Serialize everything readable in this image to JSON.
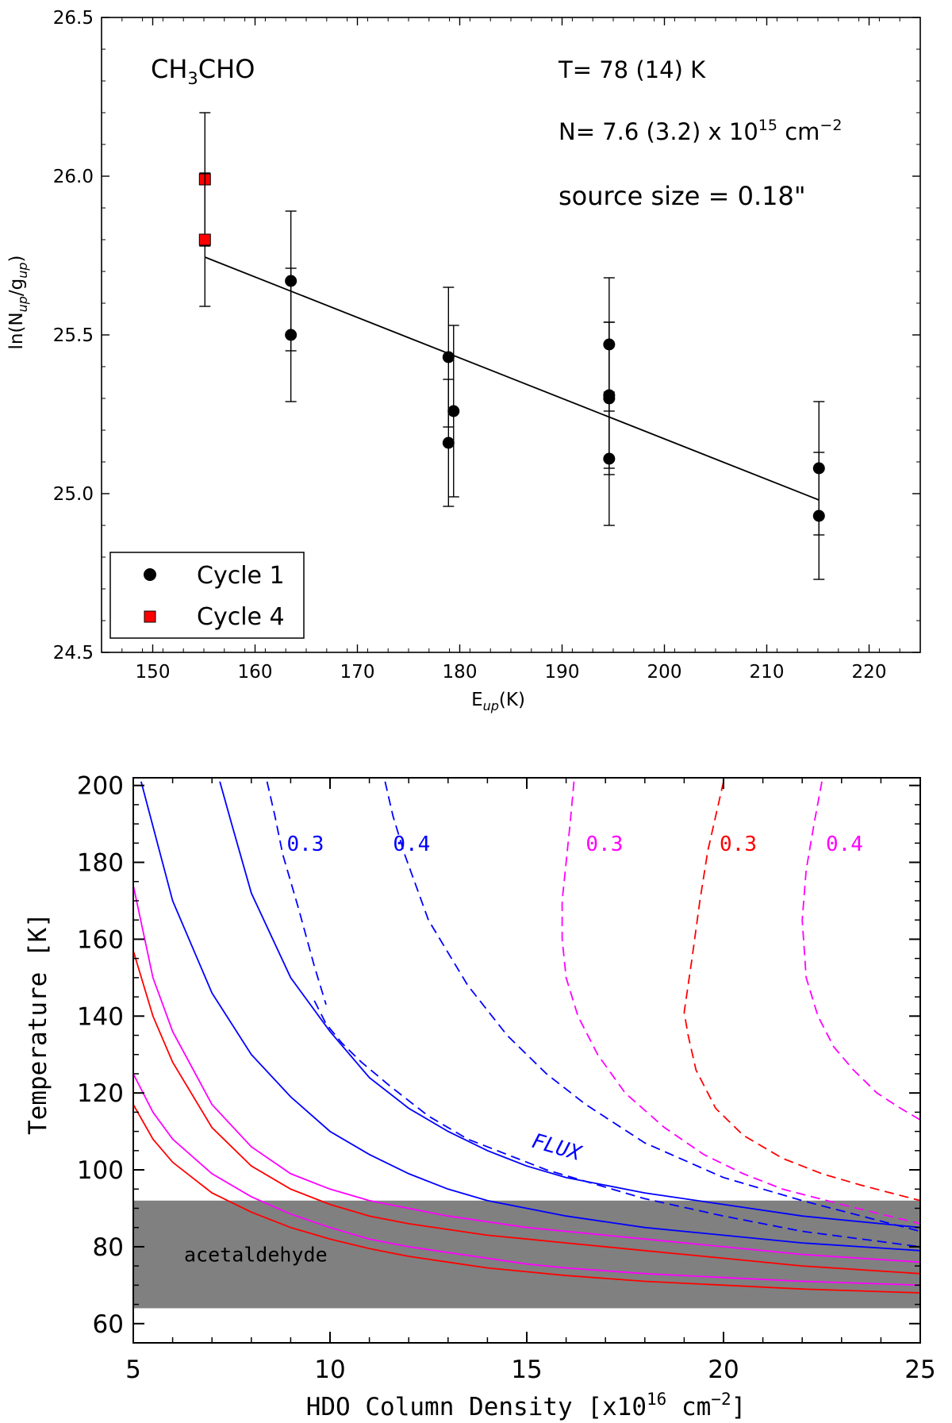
{
  "chart_data": [
    {
      "type": "scatter",
      "title": "",
      "xlabel": "E",
      "xlabel_sub": "up",
      "xlabel_unit": "(K)",
      "ylabel": "ln(N",
      "ylabel_sub1": "up",
      "ylabel_mid": "/g",
      "ylabel_sub2": "up",
      "ylabel_end": ")",
      "xlim": [
        145,
        225
      ],
      "ylim": [
        24.5,
        26.5
      ],
      "x_ticks": [
        150,
        160,
        170,
        180,
        190,
        200,
        210,
        220
      ],
      "y_ticks": [
        "24.5",
        "25.0",
        "25.5",
        "26.0",
        "26.5"
      ],
      "grid": false,
      "legend_position": "bottom-left",
      "annotations": {
        "species_main": "CH",
        "species_sub": "3",
        "species_end": "CHO",
        "temperature": "T= 78 (14) K",
        "column_prefix": "N= 7.6 (3.2) x 10",
        "column_exp": "15",
        "column_unit": "cm",
        "column_unit_exp": "−2",
        "source_size": "source size = 0.18\""
      },
      "series": [
        {
          "name": "Cycle 1",
          "color": "#000000",
          "marker": "circle",
          "points": [
            {
              "x": 163.5,
              "y": 25.67,
              "err": 0.22
            },
            {
              "x": 163.5,
              "y": 25.5,
              "err": 0.21
            },
            {
              "x": 178.9,
              "y": 25.43,
              "err": 0.22
            },
            {
              "x": 178.9,
              "y": 25.16,
              "err": 0.2
            },
            {
              "x": 179.4,
              "y": 25.26,
              "err": 0.27
            },
            {
              "x": 194.6,
              "y": 25.47,
              "err": 0.21
            },
            {
              "x": 194.6,
              "y": 25.31,
              "err": 0.23
            },
            {
              "x": 194.6,
              "y": 25.3,
              "err": 0.24
            },
            {
              "x": 194.6,
              "y": 25.11,
              "err": 0.21
            },
            {
              "x": 215.1,
              "y": 25.08,
              "err": 0.21
            },
            {
              "x": 215.1,
              "y": 24.93,
              "err": 0.2
            }
          ]
        },
        {
          "name": "Cycle 4",
          "color": "#ff0000",
          "marker": "square",
          "points": [
            {
              "x": 155.1,
              "y": 25.99,
              "err": 0.21
            },
            {
              "x": 155.1,
              "y": 25.8,
              "err": 0.21
            }
          ]
        }
      ],
      "fit_line": {
        "x": [
          155.1,
          215.1
        ],
        "y": [
          25.745,
          24.98
        ],
        "color": "#000000"
      }
    },
    {
      "type": "line",
      "title": "",
      "xlabel": "HDO Column Density [x10",
      "xlabel_exp": "16",
      "xlabel_unit": " cm",
      "xlabel_unit_exp": "−2",
      "xlabel_end": "]",
      "ylabel": "Temperature [K]",
      "xlim": [
        5,
        25
      ],
      "ylim": [
        55,
        202
      ],
      "x_ticks": [
        5,
        10,
        15,
        20,
        25
      ],
      "y_ticks": [
        60,
        80,
        100,
        120,
        140,
        160,
        180,
        200
      ],
      "grid": false,
      "band": {
        "y": [
          64,
          92
        ],
        "label": "acetaldehyde",
        "color": "#808080"
      },
      "text_labels": [
        {
          "text": "0.3",
          "x": 8.9,
          "y": 183,
          "color": "#0000ff"
        },
        {
          "text": "0.4",
          "x": 11.6,
          "y": 183,
          "color": "#0000ff"
        },
        {
          "text": "0.3",
          "x": 16.5,
          "y": 183,
          "color": "#ff00ff"
        },
        {
          "text": "0.3",
          "x": 19.9,
          "y": 183,
          "color": "#ff0000"
        },
        {
          "text": "0.4",
          "x": 22.6,
          "y": 183,
          "color": "#ff00ff"
        },
        {
          "text": "FLUX",
          "x": 15.1,
          "y": 106,
          "color": "#0000ff"
        }
      ],
      "series": [
        {
          "color": "#0000ff",
          "dash": false,
          "x": [
            5.2,
            6,
            7,
            8,
            9,
            10,
            11,
            12,
            13,
            14,
            15,
            16,
            18,
            20,
            22,
            25
          ],
          "y": [
            201,
            170,
            146,
            130,
            119,
            110,
            104,
            99,
            95,
            92,
            90,
            88,
            85,
            83,
            81,
            79
          ]
        },
        {
          "color": "#0000ff",
          "dash": false,
          "x": [
            7.2,
            7.5,
            8,
            9,
            10,
            11,
            12,
            13,
            14,
            15,
            16,
            18,
            20,
            22,
            25
          ],
          "y": [
            201,
            190,
            172,
            150,
            136,
            124,
            116,
            110,
            105,
            101,
            98,
            94,
            91,
            88,
            85
          ]
        },
        {
          "color": "#0000ff",
          "dash": true,
          "x": [
            9.6,
            9.9,
            10.3,
            10.8,
            11.5,
            12.5,
            13.5,
            14.5,
            15.5,
            16.5,
            18,
            20,
            22,
            25
          ],
          "y": [
            144,
            138,
            133,
            128,
            122,
            114,
            108,
            104,
            100,
            97,
            92.5,
            88,
            84,
            80
          ]
        },
        {
          "color": "#0000ff",
          "dash": true,
          "x": [
            8.4,
            8.6,
            8.8,
            9.2,
            9.6,
            9.9
          ],
          "y": [
            201,
            192,
            182,
            168,
            153,
            143
          ]
        },
        {
          "color": "#0000ff",
          "dash": true,
          "x": [
            11.4,
            11.6,
            11.9,
            12.5,
            13.5,
            14.5,
            15.5,
            16.5,
            18,
            20,
            22,
            25
          ],
          "y": [
            201,
            192,
            182,
            165,
            148,
            135,
            125,
            117,
            107,
            98,
            92,
            84
          ]
        },
        {
          "color": "#ff00ff",
          "dash": false,
          "x": [
            5,
            5.5,
            6,
            7,
            8,
            9,
            10,
            11,
            12,
            13,
            14,
            15,
            16,
            18,
            20,
            22,
            25
          ],
          "y": [
            174,
            150,
            136,
            117,
            106,
            99,
            95,
            92,
            90,
            88,
            86.5,
            85,
            84,
            82,
            80,
            78,
            76
          ]
        },
        {
          "color": "#ff00ff",
          "dash": false,
          "x": [
            5,
            5.5,
            6,
            7,
            8,
            9,
            10,
            11,
            12,
            13,
            14,
            15,
            16,
            18,
            20,
            22,
            25
          ],
          "y": [
            125,
            115,
            108,
            99,
            93,
            88.5,
            85,
            82,
            80,
            78.5,
            77,
            75.5,
            74.5,
            73,
            72,
            71,
            70
          ]
        },
        {
          "color": "#ff0000",
          "dash": false,
          "x": [
            5,
            5.5,
            6,
            7,
            8,
            9,
            10,
            11,
            12,
            13,
            14,
            15,
            16,
            18,
            20,
            22,
            25
          ],
          "y": [
            157,
            140,
            128,
            111,
            101,
            95,
            91,
            88,
            86,
            84.5,
            83,
            82,
            81,
            79,
            77,
            75,
            73
          ]
        },
        {
          "color": "#ff0000",
          "dash": false,
          "x": [
            5,
            5.5,
            6,
            7,
            8,
            9,
            10,
            11,
            12,
            13,
            14,
            15,
            16,
            18,
            20,
            22,
            25
          ],
          "y": [
            117,
            108,
            102,
            94,
            89,
            85,
            82,
            79.5,
            77.5,
            76,
            74.5,
            73.5,
            72.5,
            71,
            70,
            69,
            68
          ]
        },
        {
          "color": "#ff00ff",
          "dash": true,
          "x": [
            16.2,
            16.1,
            16.0,
            15.9,
            15.9,
            16.0,
            16.3,
            16.8,
            17.5,
            18.5,
            19.5,
            20.5,
            21.5,
            23,
            25
          ],
          "y": [
            201,
            190,
            180,
            170,
            160,
            150,
            140,
            130,
            120,
            111,
            104,
            99,
            95,
            91,
            86
          ]
        },
        {
          "color": "#ff0000",
          "dash": true,
          "x": [
            20,
            19.8,
            19.6,
            19.4,
            19.2,
            19.0,
            19.1,
            19.3,
            19.8,
            20.5,
            21.5,
            22.5,
            23.5,
            25
          ],
          "y": [
            201,
            192,
            183,
            170,
            155,
            141,
            135,
            126,
            116,
            109,
            103,
            99,
            96,
            92
          ]
        },
        {
          "color": "#ff00ff",
          "dash": true,
          "x": [
            22.5,
            22.3,
            22.1,
            22.0,
            22.1,
            22.4,
            22.8,
            23.3,
            23.9,
            24.5,
            25
          ],
          "y": [
            201,
            190,
            178,
            165,
            150,
            140,
            132,
            126,
            120,
            116,
            113
          ]
        }
      ]
    }
  ]
}
